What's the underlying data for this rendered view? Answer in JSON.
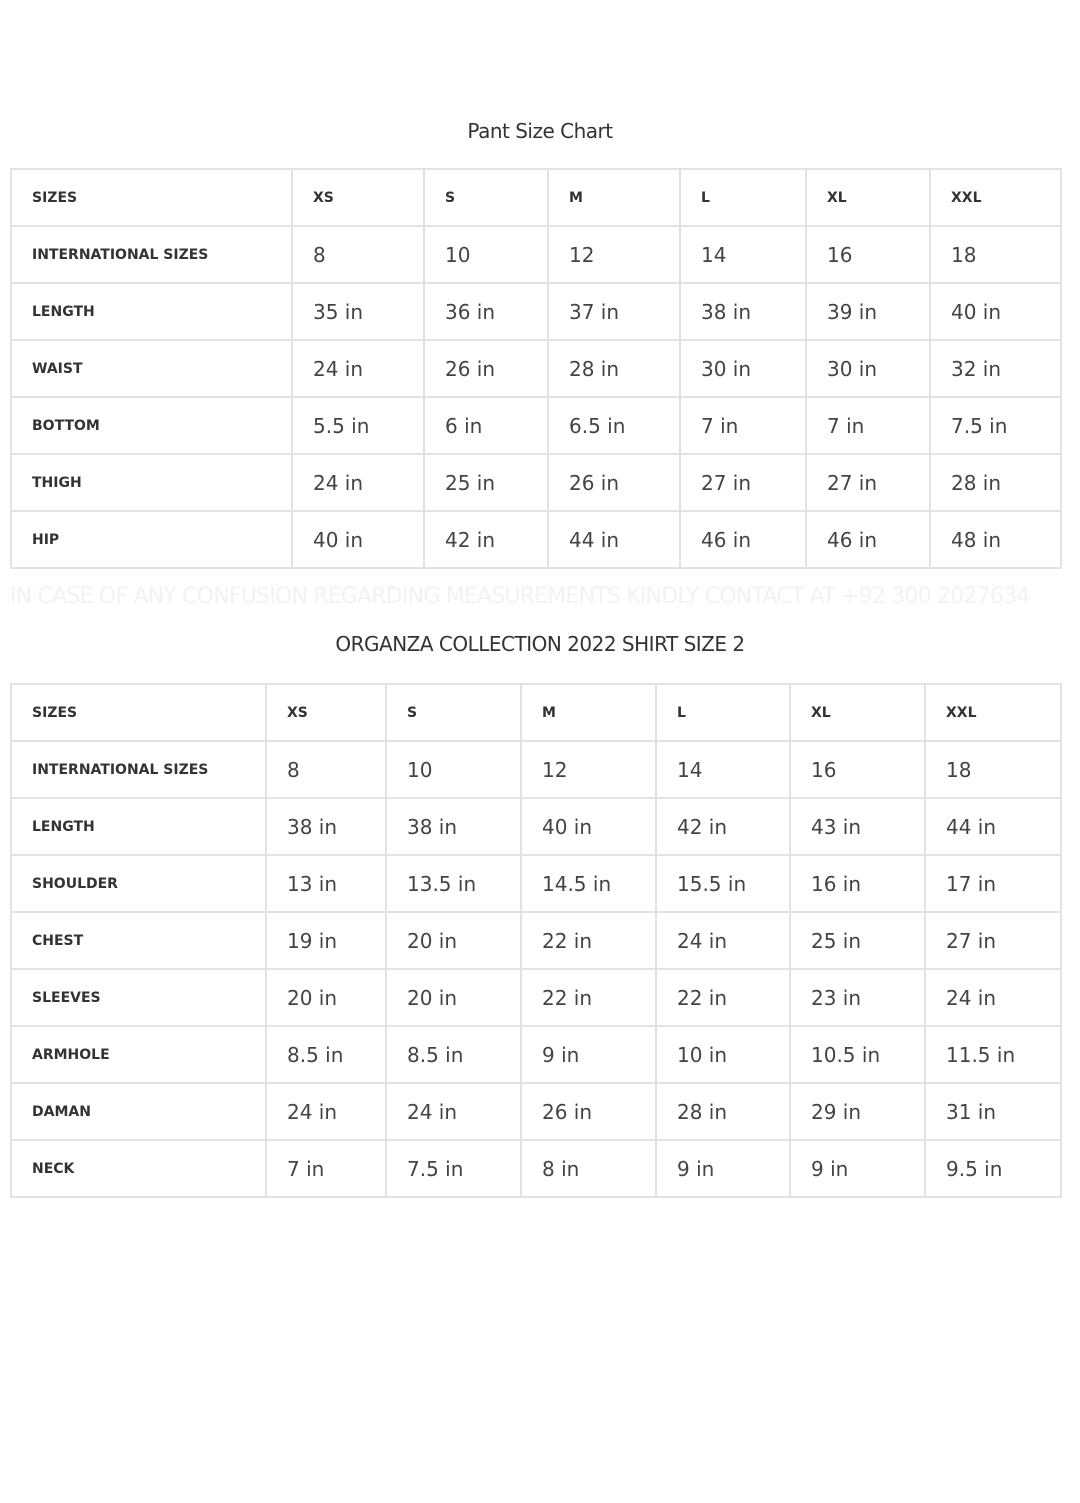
{
  "pant_chart": {
    "title": "Pant Size Chart",
    "headers": [
      "SIZES",
      "XS",
      "S",
      "M",
      "L",
      "XL",
      "XXL"
    ],
    "rows": [
      {
        "label": "INTERNATIONAL SIZES",
        "values": [
          "8",
          "10",
          "12",
          "14",
          "16",
          "18"
        ]
      },
      {
        "label": "LENGTH",
        "values": [
          "35 in",
          "36 in",
          "37 in",
          "38 in",
          "39 in",
          "40 in"
        ]
      },
      {
        "label": "WAIST",
        "values": [
          "24 in",
          "26 in",
          "28 in",
          "30 in",
          "30 in",
          "32 in"
        ]
      },
      {
        "label": "BOTTOM",
        "values": [
          "5.5 in",
          "6 in",
          "6.5 in",
          "7 in",
          "7 in",
          "7.5 in"
        ]
      },
      {
        "label": "THIGH",
        "values": [
          "24 in",
          "25 in",
          "26 in",
          "27 in",
          "27 in",
          "28 in"
        ]
      },
      {
        "label": "HIP",
        "values": [
          "40 in",
          "42 in",
          "44 in",
          "46 in",
          "46 in",
          "48 in"
        ]
      }
    ]
  },
  "contact_note": "IN CASE OF ANY CONFUSION REGARDING MEASUREMENTS KINDLY CONTACT AT +92 300 2027634",
  "shirt_chart": {
    "title": "ORGANZA COLLECTION 2022 SHIRT SIZE 2",
    "headers": [
      "SIZES",
      "XS",
      "S",
      "M",
      "L",
      "XL",
      "XXL"
    ],
    "rows": [
      {
        "label": "INTERNATIONAL SIZES",
        "values": [
          "8",
          "10",
          "12",
          "14",
          "16",
          "18"
        ]
      },
      {
        "label": "LENGTH",
        "values": [
          "38 in",
          "38 in",
          "40 in",
          "42 in",
          "43 in",
          "44 in"
        ]
      },
      {
        "label": "SHOULDER",
        "values": [
          "13 in",
          "13.5 in",
          "14.5 in",
          "15.5 in",
          "16 in",
          "17 in"
        ]
      },
      {
        "label": "CHEST",
        "values": [
          "19 in",
          "20 in",
          "22 in",
          "24 in",
          "25 in",
          "27 in"
        ]
      },
      {
        "label": "SLEEVES",
        "values": [
          "20 in",
          "20 in",
          "22 in",
          "22 in",
          "23 in",
          "24 in"
        ]
      },
      {
        "label": "ARMHOLE",
        "values": [
          "8.5 in",
          "8.5 in",
          "9 in",
          "10 in",
          "10.5 in",
          "11.5 in"
        ]
      },
      {
        "label": "DAMAN",
        "values": [
          "24 in",
          "24 in",
          "26 in",
          "28 in",
          "29 in",
          "31 in"
        ]
      },
      {
        "label": "NECK",
        "values": [
          "7 in",
          "7.5 in",
          "8 in",
          "9 in",
          "9 in",
          "9.5 in"
        ]
      }
    ]
  }
}
